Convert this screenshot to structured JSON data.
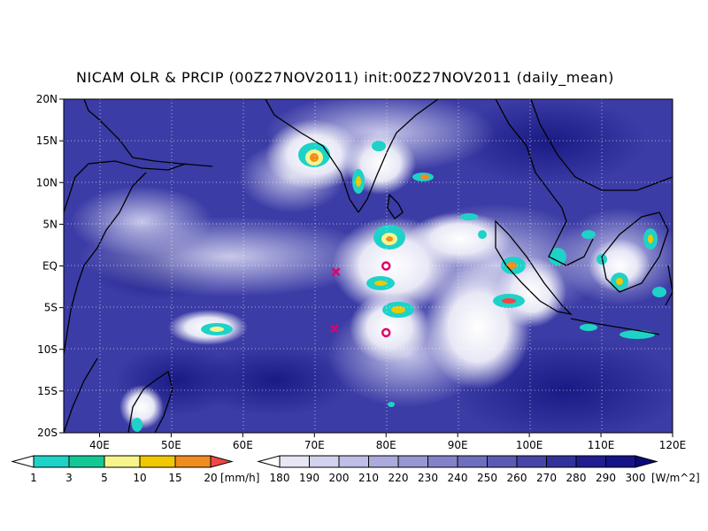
{
  "title": "NICAM OLR & PRCIP (00Z27NOV2011) init:00Z27NOV2011 (daily_mean)",
  "map": {
    "lon_range": [
      35,
      120
    ],
    "lat_range": [
      -20,
      20
    ],
    "lon_ticks": [
      {
        "lon": 40,
        "label": "40E"
      },
      {
        "lon": 50,
        "label": "50E"
      },
      {
        "lon": 60,
        "label": "60E"
      },
      {
        "lon": 70,
        "label": "70E"
      },
      {
        "lon": 80,
        "label": "80E"
      },
      {
        "lon": 90,
        "label": "90E"
      },
      {
        "lon": 100,
        "label": "100E"
      },
      {
        "lon": 110,
        "label": "110E"
      },
      {
        "lon": 120,
        "label": "120E"
      }
    ],
    "lat_ticks": [
      {
        "lat": 20,
        "label": "20N"
      },
      {
        "lat": 15,
        "label": "15N"
      },
      {
        "lat": 10,
        "label": "10N"
      },
      {
        "lat": 5,
        "label": "5N"
      },
      {
        "lat": 0,
        "label": "EQ"
      },
      {
        "lat": -5,
        "label": "5S"
      },
      {
        "lat": -10,
        "label": "10S"
      },
      {
        "lat": -15,
        "label": "15S"
      },
      {
        "lat": -20,
        "label": "20S"
      }
    ],
    "grid": "dotted",
    "markers": [
      {
        "type": "circle",
        "lon": 80,
        "lat": 0,
        "color": "#e0006c"
      },
      {
        "type": "circle",
        "lon": 80,
        "lat": -8,
        "color": "#e0006c"
      },
      {
        "type": "cross",
        "lon": 73,
        "lat": -0.7,
        "color": "#e0006c"
      },
      {
        "type": "cross",
        "lon": 72.8,
        "lat": -7.5,
        "color": "#e0006c"
      }
    ]
  },
  "precip_colorbar": {
    "unit": "[mm/h]",
    "labels": [
      "1",
      "3",
      "5",
      "10",
      "15",
      "20"
    ],
    "colors": [
      "#ffffff",
      "#1ed2c8",
      "#14c896",
      "#f5f58c",
      "#f0c800",
      "#f08c1e",
      "#f04646"
    ]
  },
  "olr_colorbar": {
    "unit": "[W/m^2]",
    "labels": [
      "180",
      "190",
      "200",
      "210",
      "220",
      "230",
      "240",
      "250",
      "260",
      "270",
      "280",
      "290",
      "300"
    ],
    "colors": [
      "#ffffff",
      "#e6e6f5",
      "#d2d2ee",
      "#bebee6",
      "#aaaadc",
      "#9696d2",
      "#8282c8",
      "#6e6ebe",
      "#5a5ab4",
      "#4646a8",
      "#32329c",
      "#1e1e90",
      "#141488",
      "#0a0a78"
    ]
  }
}
